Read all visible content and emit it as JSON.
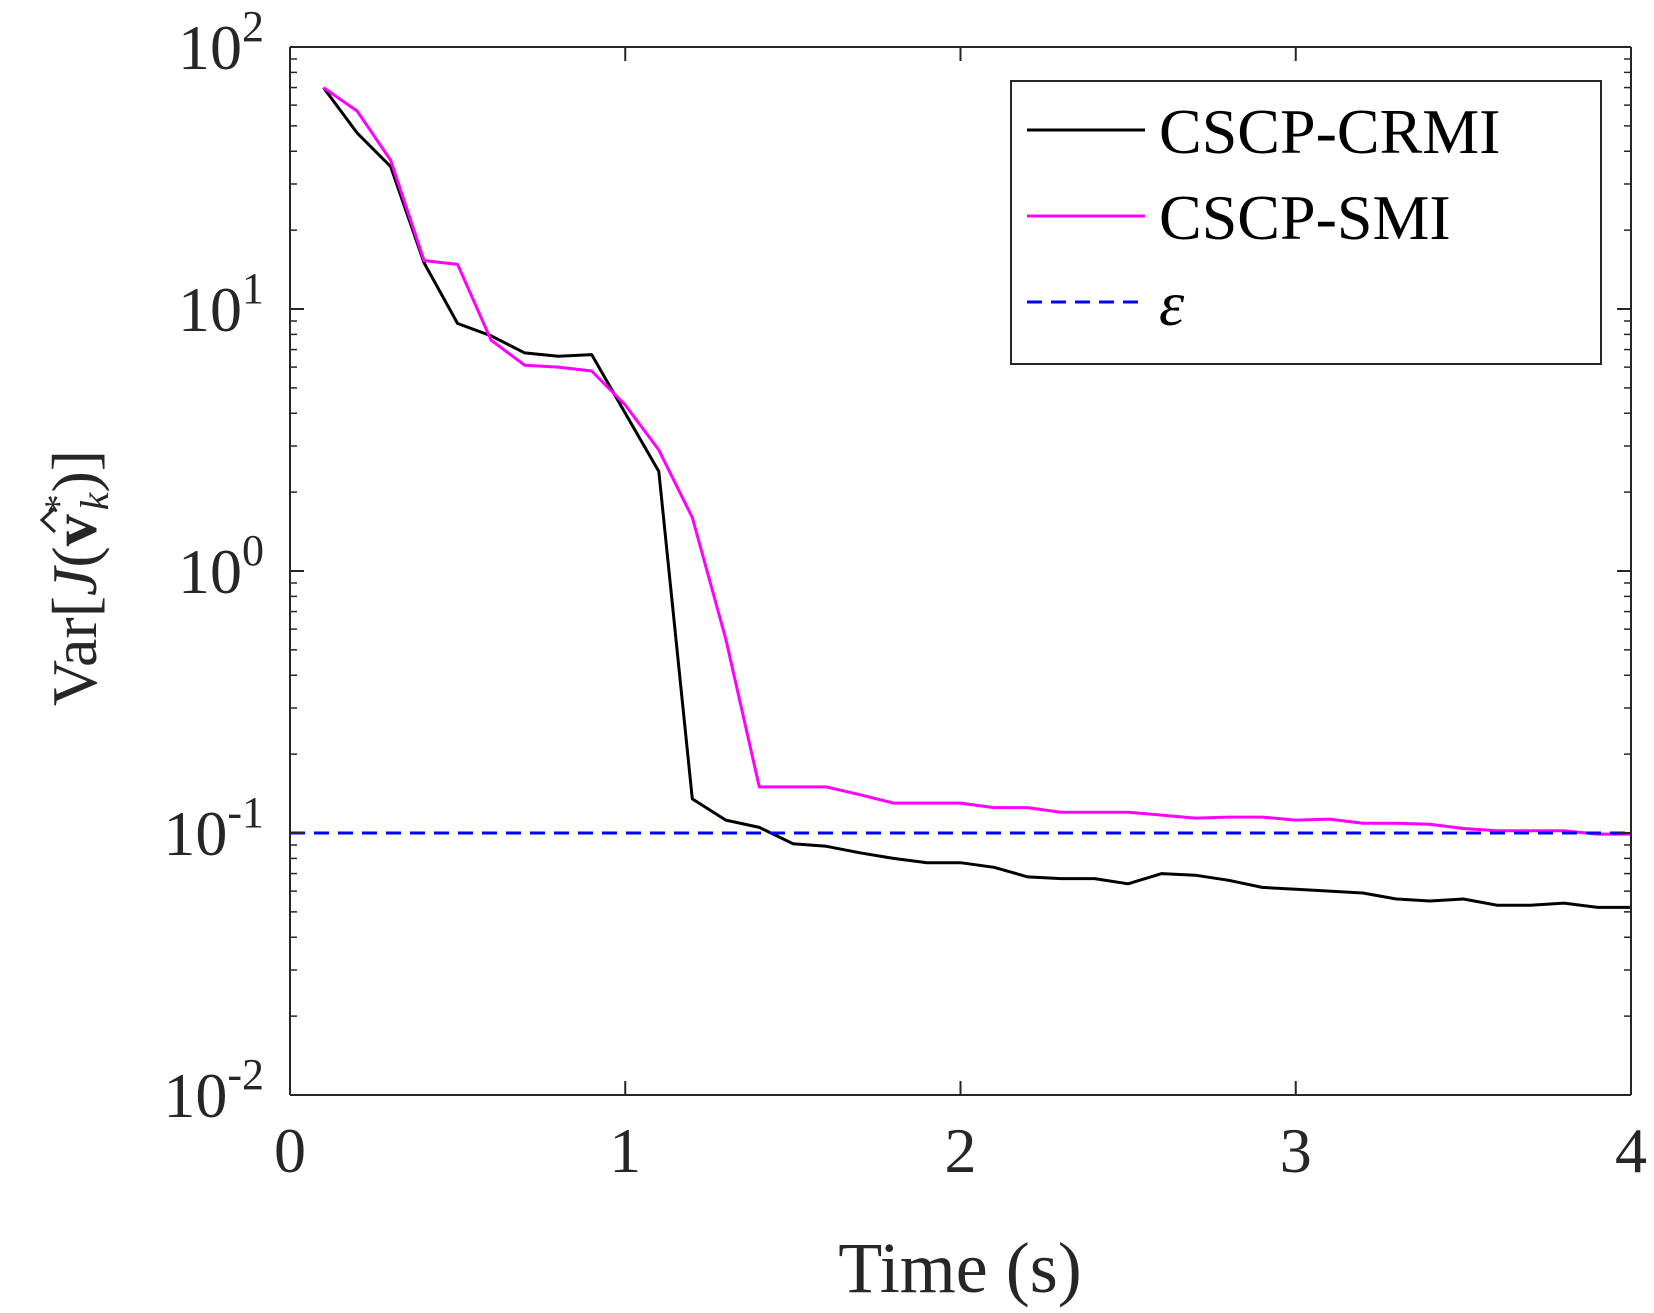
{
  "chart_data": {
    "type": "line",
    "title": "",
    "xlabel": "Time (s)",
    "ylabel": "Var[Ĵ(v*ₖ)]",
    "ylabel_parts": {
      "pre": "Var[",
      "hat_var": "J",
      "open": "(",
      "vec": "v",
      "sup": "*",
      "sub": "k",
      "post": ")]"
    },
    "xlim": [
      0,
      4
    ],
    "ylim": [
      0.01,
      100
    ],
    "yscale": "log",
    "x_ticks": [
      0,
      1,
      2,
      3,
      4
    ],
    "x_tick_labels": [
      "0",
      "1",
      "2",
      "3",
      "4"
    ],
    "y_ticks": [
      {
        "value": 0.01,
        "base": "10",
        "exp": "-2"
      },
      {
        "value": 0.1,
        "base": "10",
        "exp": "-1"
      },
      {
        "value": 1,
        "base": "10",
        "exp": "0"
      },
      {
        "value": 10,
        "base": "10",
        "exp": "1"
      },
      {
        "value": 100,
        "base": "10",
        "exp": "2"
      }
    ],
    "grid": false,
    "legend_position": "top-right",
    "series": [
      {
        "name": "CSCP-CRMI",
        "color": "#000000",
        "dash": "solid",
        "x": [
          0.1,
          0.2,
          0.3,
          0.4,
          0.5,
          0.6,
          0.7,
          0.8,
          0.9,
          1.0,
          1.1,
          1.2,
          1.3,
          1.4,
          1.5,
          1.6,
          1.7,
          1.8,
          1.9,
          2.0,
          2.1,
          2.2,
          2.3,
          2.4,
          2.5,
          2.6,
          2.7,
          2.8,
          2.9,
          3.0,
          3.1,
          3.2,
          3.3,
          3.4,
          3.5,
          3.6,
          3.7,
          3.8,
          3.9,
          4.0
        ],
        "values": [
          70,
          47,
          35,
          15,
          8.8,
          7.9,
          6.8,
          6.6,
          6.7,
          4.0,
          2.4,
          0.135,
          0.112,
          0.105,
          0.091,
          0.089,
          0.084,
          0.08,
          0.077,
          0.077,
          0.074,
          0.068,
          0.067,
          0.067,
          0.064,
          0.07,
          0.069,
          0.066,
          0.062,
          0.061,
          0.06,
          0.059,
          0.056,
          0.055,
          0.056,
          0.053,
          0.053,
          0.054,
          0.052,
          0.052
        ]
      },
      {
        "name": "CSCP-SMI",
        "color": "#FF00FF",
        "dash": "solid",
        "x": [
          0.1,
          0.2,
          0.3,
          0.4,
          0.5,
          0.6,
          0.7,
          0.8,
          0.9,
          1.0,
          1.1,
          1.2,
          1.3,
          1.4,
          1.5,
          1.6,
          1.7,
          1.8,
          1.9,
          2.0,
          2.1,
          2.2,
          2.3,
          2.4,
          2.5,
          2.6,
          2.7,
          2.8,
          2.9,
          3.0,
          3.1,
          3.2,
          3.3,
          3.4,
          3.5,
          3.6,
          3.7,
          3.8,
          3.9,
          4.0
        ],
        "values": [
          70,
          57,
          37,
          15.3,
          14.8,
          7.6,
          6.1,
          6.0,
          5.8,
          4.3,
          2.9,
          1.6,
          0.55,
          0.15,
          0.15,
          0.15,
          0.14,
          0.13,
          0.13,
          0.13,
          0.125,
          0.125,
          0.12,
          0.12,
          0.12,
          0.117,
          0.114,
          0.115,
          0.115,
          0.112,
          0.113,
          0.109,
          0.109,
          0.108,
          0.104,
          0.102,
          0.102,
          0.102,
          0.099,
          0.099
        ]
      },
      {
        "name": "ε",
        "color": "#0000FF",
        "dash": "dashed",
        "x": [
          0,
          4
        ],
        "values": [
          0.1,
          0.1
        ]
      }
    ]
  }
}
